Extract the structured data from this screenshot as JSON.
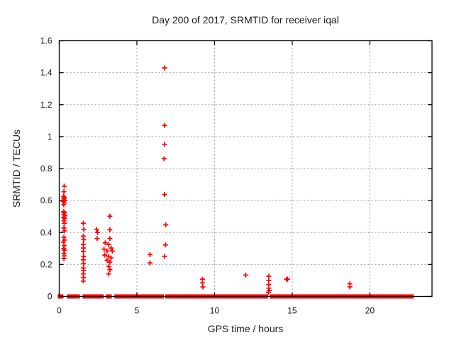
{
  "chart_data": {
    "type": "scatter",
    "title": "Day 200 of 2017, SRMTID for receiver iqal",
    "xlabel": "GPS time / hours",
    "ylabel": "SRMTID / TECUs",
    "xlim": [
      0,
      24
    ],
    "ylim": [
      0,
      1.6
    ],
    "x_ticks": [
      0,
      5,
      10,
      15,
      20
    ],
    "x_tick_labels": [
      "0",
      "5",
      "10",
      "15",
      "20"
    ],
    "y_ticks": [
      0,
      0.2,
      0.4,
      0.6,
      0.8,
      1.0,
      1.2,
      1.4,
      1.6
    ],
    "y_tick_labels": [
      "0",
      "0.2",
      "0.4",
      "0.6",
      "0.8",
      "1",
      "1.2",
      "1.4",
      "1.6"
    ],
    "grid": true,
    "legend": "none",
    "marker": "plus",
    "marker_color": "#ff0000",
    "border_color": "#000000",
    "grid_color": "#9a9a9a",
    "series": [
      {
        "name": "SRMTID",
        "points": [
          [
            0.32,
            0.69
          ],
          [
            0.3,
            0.655
          ],
          [
            0.27,
            0.625
          ],
          [
            0.33,
            0.62
          ],
          [
            0.3,
            0.61
          ],
          [
            0.36,
            0.6
          ],
          [
            0.26,
            0.595
          ],
          [
            0.32,
            0.585
          ],
          [
            0.29,
            0.575
          ],
          [
            0.28,
            0.53
          ],
          [
            0.33,
            0.525
          ],
          [
            0.3,
            0.515
          ],
          [
            0.36,
            0.505
          ],
          [
            0.29,
            0.495
          ],
          [
            0.34,
            0.488
          ],
          [
            0.3,
            0.474
          ],
          [
            0.32,
            0.458
          ],
          [
            0.3,
            0.428
          ],
          [
            0.34,
            0.41
          ],
          [
            0.3,
            0.37
          ],
          [
            0.33,
            0.353
          ],
          [
            0.27,
            0.34
          ],
          [
            0.32,
            0.318
          ],
          [
            0.29,
            0.3
          ],
          [
            0.34,
            0.29
          ],
          [
            0.3,
            0.268
          ],
          [
            0.32,
            0.254
          ],
          [
            0.3,
            0.237
          ],
          [
            1.55,
            0.458
          ],
          [
            1.58,
            0.42
          ],
          [
            1.55,
            0.377
          ],
          [
            1.57,
            0.355
          ],
          [
            1.55,
            0.325
          ],
          [
            1.56,
            0.303
          ],
          [
            1.55,
            0.281
          ],
          [
            1.57,
            0.251
          ],
          [
            1.55,
            0.229
          ],
          [
            1.56,
            0.207
          ],
          [
            1.55,
            0.178
          ],
          [
            1.57,
            0.163
          ],
          [
            1.55,
            0.141
          ],
          [
            1.56,
            0.119
          ],
          [
            1.55,
            0.096
          ],
          [
            2.4,
            0.42
          ],
          [
            2.47,
            0.4
          ],
          [
            2.44,
            0.362
          ],
          [
            3.26,
            0.502
          ],
          [
            3.26,
            0.417
          ],
          [
            3.26,
            0.362
          ],
          [
            2.96,
            0.335
          ],
          [
            3.19,
            0.325
          ],
          [
            3.34,
            0.303
          ],
          [
            2.88,
            0.296
          ],
          [
            3.08,
            0.284
          ],
          [
            3.42,
            0.284
          ],
          [
            2.93,
            0.259
          ],
          [
            3.19,
            0.251
          ],
          [
            3.34,
            0.241
          ],
          [
            3.08,
            0.227
          ],
          [
            3.26,
            0.215
          ],
          [
            3.19,
            0.188
          ],
          [
            3.26,
            0.167
          ],
          [
            3.19,
            0.141
          ],
          [
            5.84,
            0.262
          ],
          [
            5.84,
            0.21
          ],
          [
            6.78,
            1.43
          ],
          [
            6.78,
            1.07
          ],
          [
            6.78,
            0.952
          ],
          [
            6.75,
            0.862
          ],
          [
            6.78,
            0.638
          ],
          [
            6.86,
            0.448
          ],
          [
            6.84,
            0.322
          ],
          [
            6.78,
            0.251
          ],
          [
            9.22,
            0.108
          ],
          [
            9.22,
            0.085
          ],
          [
            9.25,
            0.06
          ],
          [
            12.0,
            0.134
          ],
          [
            13.49,
            0.126
          ],
          [
            13.49,
            0.1
          ],
          [
            13.49,
            0.074
          ],
          [
            13.49,
            0.052
          ],
          [
            13.52,
            0.038
          ],
          [
            13.47,
            0.026
          ],
          [
            14.63,
            0.108
          ],
          [
            14.7,
            0.108
          ],
          [
            18.71,
            0.079
          ],
          [
            18.71,
            0.06
          ]
        ]
      }
    ],
    "baseline_band": {
      "y": 0,
      "note": "dense overlapping markers along y=0",
      "segments_hours": [
        [
          -0.1,
          0.27
        ],
        [
          0.5,
          1.33
        ],
        [
          1.5,
          2.87
        ],
        [
          3.0,
          3.38
        ],
        [
          3.55,
          6.74
        ],
        [
          6.82,
          13.45
        ],
        [
          13.55,
          22.82
        ]
      ]
    }
  }
}
